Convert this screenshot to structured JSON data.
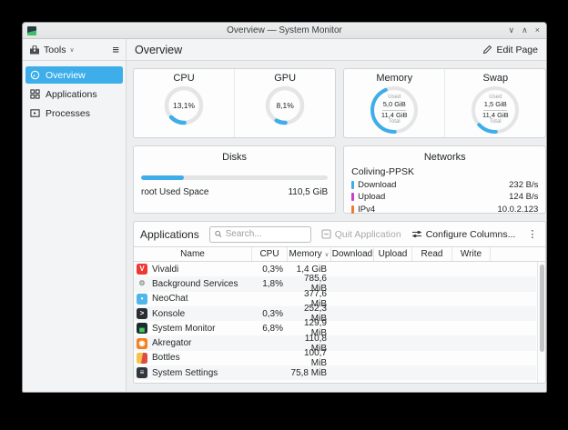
{
  "titlebar": {
    "title": "Overview — System Monitor",
    "minimize_glyph": "∨",
    "maximize_glyph": "∧",
    "close_glyph": "×"
  },
  "toolbar": {
    "tools_label": "Tools",
    "page_title": "Overview",
    "edit_page_label": "Edit Page"
  },
  "sidebar": {
    "items": [
      {
        "label": "Overview",
        "selected": true
      },
      {
        "label": "Applications",
        "selected": false
      },
      {
        "label": "Processes",
        "selected": false
      }
    ]
  },
  "cpu": {
    "title": "CPU",
    "value": "13,1%",
    "percent": 13.1
  },
  "gpu": {
    "title": "GPU",
    "value": "8,1%",
    "percent": 8.1
  },
  "memory": {
    "title": "Memory",
    "used_label": "Used",
    "used": "5,0 GiB",
    "total": "11,4 GiB",
    "total_label": "Total",
    "percent": 43.9
  },
  "swap": {
    "title": "Swap",
    "used_label": "Used",
    "used": "1,5 GiB",
    "total": "11,4 GiB",
    "total_label": "Total",
    "percent": 13.2
  },
  "disks": {
    "title": "Disks",
    "row": {
      "label": "root Used Space",
      "value": "110,5 GiB",
      "percent": 23
    }
  },
  "networks": {
    "title": "Networks",
    "ssid": "Coliving-PPSK",
    "rows": [
      {
        "label": "Download",
        "value": "232 B/s",
        "color": "#3daee9"
      },
      {
        "label": "Upload",
        "value": "124 B/s",
        "color": "#c53fd0"
      },
      {
        "label": "IPv4",
        "value": "10.0.2.123",
        "color": "#ee7a30"
      }
    ]
  },
  "applications": {
    "title": "Applications",
    "search_placeholder": "Search...",
    "quit_label": "Quit Application",
    "configure_label": "Configure Columns...",
    "overflow_glyph": "⋮",
    "columns": [
      "Name",
      "CPU",
      "Memory",
      "Download",
      "Upload",
      "Read",
      "Write"
    ],
    "sort_column": "Memory",
    "sort_glyph": "∨",
    "accent_color": "#3daee9",
    "rows": [
      {
        "name": "Vivaldi",
        "cpu": "0,3%",
        "memory": "1,4 GiB",
        "icon": {
          "name": "vivaldi-icon",
          "bg": "#ee3832",
          "glyph": "V",
          "color": "#ffffff"
        }
      },
      {
        "name": "Background Services",
        "cpu": "1,8%",
        "memory": "785,6 MiB",
        "icon": {
          "name": "background-services-icon",
          "bg": "transparent",
          "glyph": "⚙",
          "color": "#8e9396"
        }
      },
      {
        "name": "NeoChat",
        "cpu": "",
        "memory": "377,6 MiB",
        "icon": {
          "name": "neochat-icon",
          "bg": "#4cb7ea",
          "glyph": "•",
          "color": "#ffffff"
        }
      },
      {
        "name": "Konsole",
        "cpu": "0,3%",
        "memory": "252,3 MiB",
        "icon": {
          "name": "konsole-icon",
          "bg": "#2a2e32",
          "glyph": ">",
          "color": "#ffffff"
        }
      },
      {
        "name": "System Monitor",
        "cpu": "6,8%",
        "memory": "129,9 MiB",
        "icon": {
          "name": "system-monitor-icon",
          "bg": "#1c2b38",
          "glyph": "▄",
          "color": "#41cd52"
        }
      },
      {
        "name": "Akregator",
        "cpu": "",
        "memory": "110,8 MiB",
        "icon": {
          "name": "akregator-icon",
          "bg": "#f08223",
          "glyph": "◉",
          "color": "#ffffff"
        }
      },
      {
        "name": "Bottles",
        "cpu": "",
        "memory": "100,7 MiB",
        "icon": {
          "name": "bottles-icon",
          "bg": "linear-gradient(100deg,#f3c44d 48%,#df4b42 52%)",
          "glyph": "",
          "color": "#ffffff"
        }
      },
      {
        "name": "System Settings",
        "cpu": "",
        "memory": "75,8 MiB",
        "icon": {
          "name": "system-settings-icon",
          "bg": "#30363b",
          "glyph": "≡",
          "color": "#ffffff"
        }
      }
    ]
  }
}
